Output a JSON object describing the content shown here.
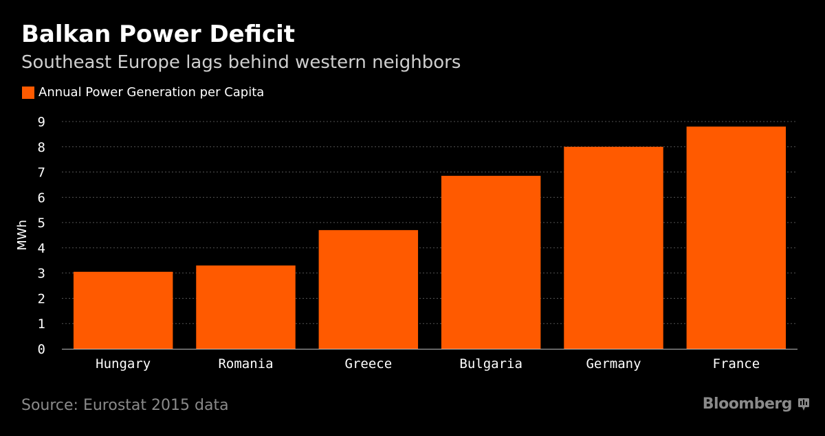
{
  "header": {
    "title": "Balkan Power Deficit",
    "subtitle": "Southeast Europe lags behind western neighbors"
  },
  "legend": {
    "label": "Annual Power Generation per Capita",
    "color": "#ff5a00"
  },
  "footer": {
    "source": "Source: Eurostat 2015 data",
    "brand": "Bloomberg",
    "brand_icon": "bloomberg-terminal-icon"
  },
  "colors": {
    "background": "#000000",
    "bar": "#ff5a00",
    "grid": "#555555",
    "axis_text": "#ffffff",
    "muted_text": "#8a8a8a"
  },
  "chart_data": {
    "type": "bar",
    "title": "Balkan Power Deficit",
    "subtitle": "Southeast Europe lags behind western neighbors",
    "categories": [
      "Hungary",
      "Romania",
      "Greece",
      "Bulgaria",
      "Germany",
      "France"
    ],
    "series": [
      {
        "name": "Annual Power Generation per Capita",
        "values": [
          3.05,
          3.3,
          4.7,
          6.85,
          8.0,
          8.8
        ]
      }
    ],
    "xlabel": "",
    "ylabel": "MWh",
    "ylim": [
      0,
      9
    ],
    "yticks": [
      0,
      1,
      2,
      3,
      4,
      5,
      6,
      7,
      8,
      9
    ],
    "grid": true,
    "legend_position": "top-left"
  }
}
